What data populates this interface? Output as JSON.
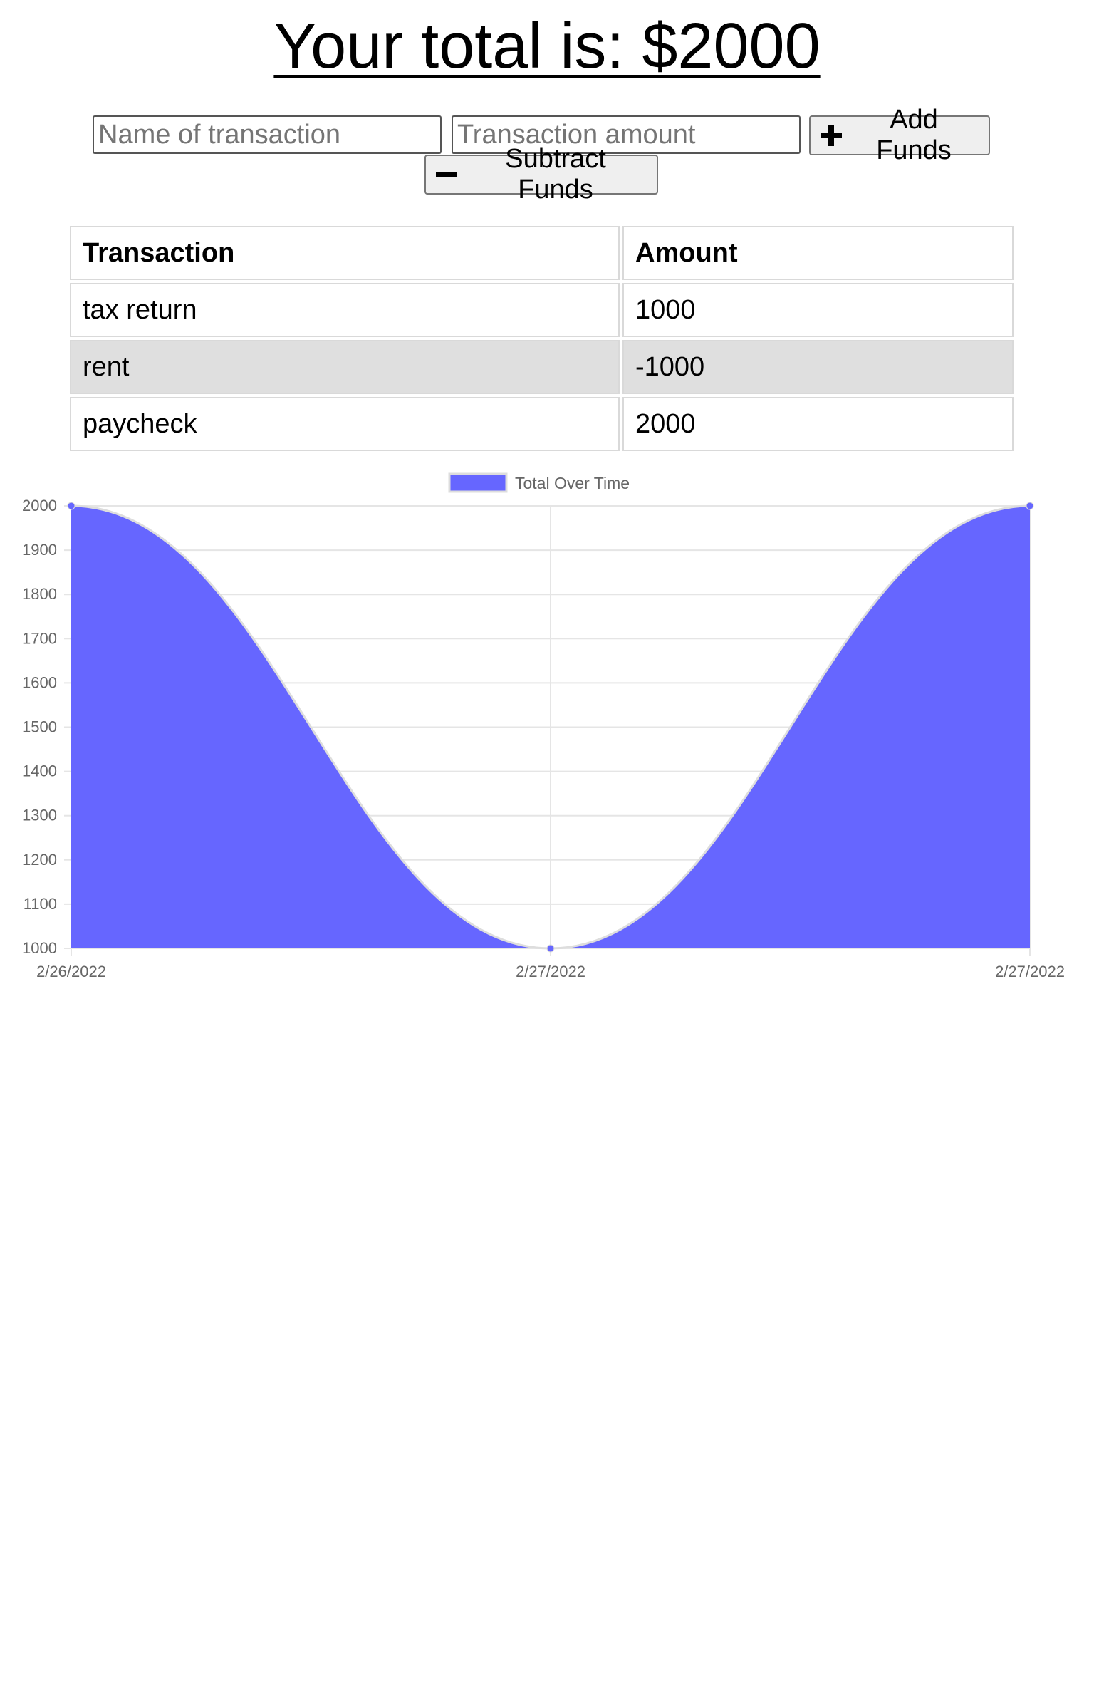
{
  "header": {
    "total_label": "Your total is: $2000"
  },
  "form": {
    "name_placeholder": "Name of transaction",
    "amount_placeholder": "Transaction amount",
    "add_label": "Add Funds",
    "subtract_label": "Subtract Funds"
  },
  "table": {
    "headers": [
      "Transaction",
      "Amount"
    ],
    "rows": [
      {
        "name": "tax return",
        "amount": "1000"
      },
      {
        "name": "rent",
        "amount": "-1000"
      },
      {
        "name": "paycheck",
        "amount": "2000"
      }
    ]
  },
  "chart_data": {
    "type": "area",
    "categories": [
      "2/26/2022",
      "2/27/2022",
      "2/27/2022"
    ],
    "series": [
      {
        "name": "Total Over Time",
        "values": [
          2000,
          1000,
          2000
        ],
        "color": "#6666ff",
        "line_color": "#dddddd"
      }
    ],
    "ylim": [
      1000,
      2000
    ],
    "yticks": [
      1000,
      1100,
      1200,
      1300,
      1400,
      1500,
      1600,
      1700,
      1800,
      1900,
      2000
    ],
    "grid": true,
    "legend": "top-center",
    "title": "",
    "xlabel": "",
    "ylabel": ""
  }
}
